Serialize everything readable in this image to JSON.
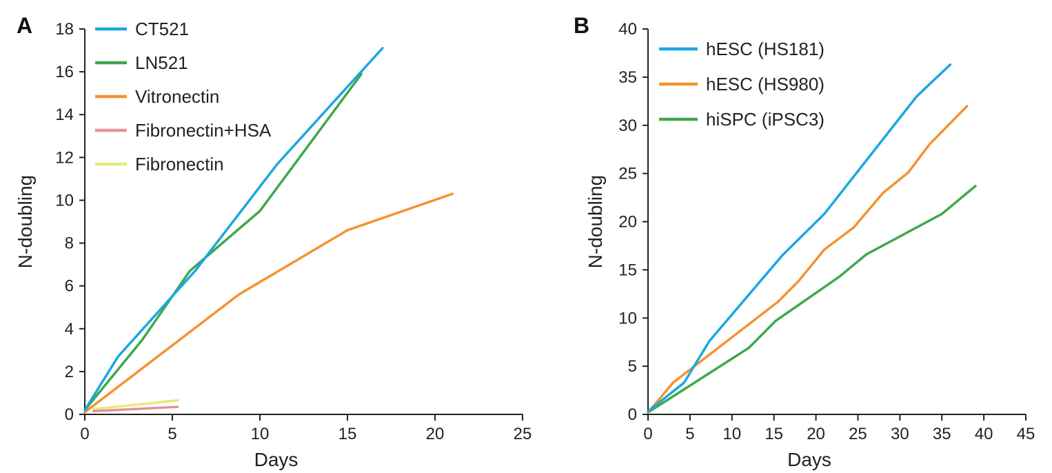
{
  "chart_data": [
    {
      "type": "line",
      "panel": "A",
      "xlabel": "Days",
      "ylabel": "N-doubling",
      "xlim": [
        0,
        25
      ],
      "ylim": [
        0,
        18
      ],
      "xticks": [
        0,
        5,
        10,
        15,
        20,
        25
      ],
      "yticks": [
        0,
        2,
        4,
        6,
        8,
        10,
        12,
        14,
        16,
        18
      ],
      "legend_position": "top-left",
      "series": [
        {
          "name": "CT521",
          "color": "#1ba7e0",
          "points": [
            [
              0,
              0.2
            ],
            [
              1.9,
              2.7
            ],
            [
              6.3,
              6.7
            ],
            [
              11,
              11.7
            ],
            [
              17,
              17.1
            ]
          ]
        },
        {
          "name": "LN521",
          "color": "#3ea84a",
          "points": [
            [
              0,
              0.2
            ],
            [
              3.3,
              3.5
            ],
            [
              6,
              6.7
            ],
            [
              10,
              9.5
            ],
            [
              15.8,
              15.9
            ]
          ]
        },
        {
          "name": "Vitronectin",
          "color": "#f4922e",
          "points": [
            [
              0,
              0.1
            ],
            [
              8.8,
              5.6
            ],
            [
              15,
              8.6
            ],
            [
              21,
              10.3
            ]
          ]
        },
        {
          "name": "Fibronectin+HSA",
          "color": "#e6909a",
          "points": [
            [
              0.5,
              0.15
            ],
            [
              5.3,
              0.35
            ]
          ]
        },
        {
          "name": "Fibronectin",
          "color": "#e6ea7a",
          "points": [
            [
              0.5,
              0.25
            ],
            [
              5.3,
              0.65
            ]
          ]
        }
      ]
    },
    {
      "type": "line",
      "panel": "B",
      "xlabel": "Days",
      "ylabel": "N-doubling",
      "xlim": [
        0,
        45
      ],
      "ylim": [
        0,
        40
      ],
      "xticks": [
        0,
        5,
        10,
        15,
        20,
        25,
        30,
        35,
        40,
        45
      ],
      "yticks": [
        0,
        5,
        10,
        15,
        20,
        25,
        30,
        35,
        40
      ],
      "legend_position": "top-left",
      "series": [
        {
          "name": "hESC (HS181)",
          "color": "#1ba7e0",
          "points": [
            [
              0,
              0.3
            ],
            [
              4.3,
              3.3
            ],
            [
              7.3,
              7.6
            ],
            [
              16,
              16.5
            ],
            [
              21,
              20.8
            ],
            [
              32,
              33
            ],
            [
              36,
              36.3
            ]
          ]
        },
        {
          "name": "hESC (HS980)",
          "color": "#f4922e",
          "points": [
            [
              0,
              0.2
            ],
            [
              3,
              3.3
            ],
            [
              15.5,
              11.7
            ],
            [
              18,
              13.9
            ],
            [
              21,
              17.1
            ],
            [
              24.5,
              19.4
            ],
            [
              28,
              23
            ],
            [
              31,
              25.1
            ],
            [
              33.5,
              28
            ],
            [
              38,
              32
            ]
          ]
        },
        {
          "name": "hiSPC (iPSC3)",
          "color": "#3ea84a",
          "points": [
            [
              0,
              0.2
            ],
            [
              12,
              6.9
            ],
            [
              15.2,
              9.7
            ],
            [
              22.8,
              14.3
            ],
            [
              26,
              16.6
            ],
            [
              35,
              20.8
            ],
            [
              39,
              23.7
            ]
          ]
        }
      ]
    }
  ]
}
